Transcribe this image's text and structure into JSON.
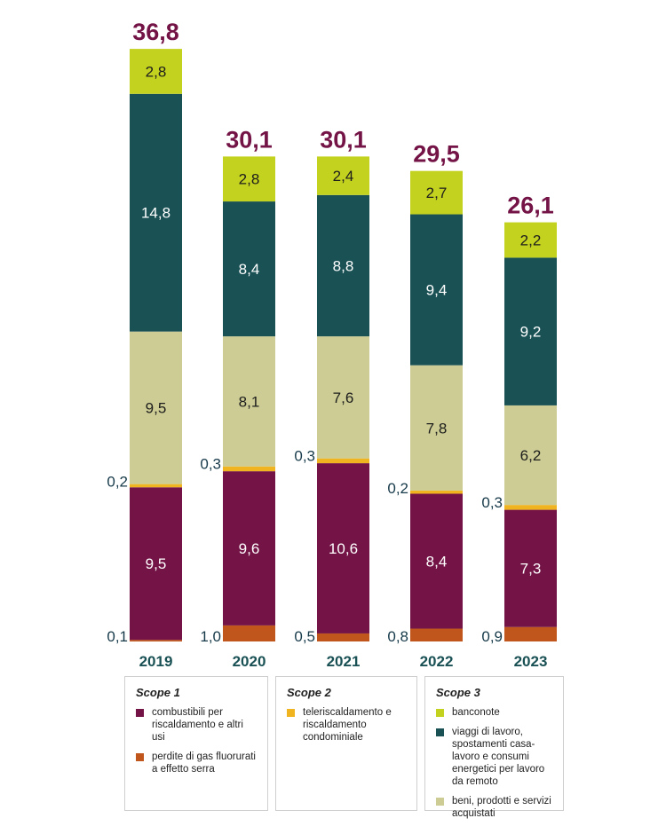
{
  "chart_data": {
    "type": "bar",
    "stacked": true,
    "categories": [
      "2019",
      "2020",
      "2021",
      "2022",
      "2023"
    ],
    "totals": [
      "36,8",
      "30,1",
      "30,1",
      "29,5",
      "26,1"
    ],
    "series": [
      {
        "name": "perdite di gas fluorurati a effetto serra",
        "color": "#c0561c",
        "values": [
          0.1,
          1.0,
          0.5,
          0.8,
          0.9
        ],
        "labels": [
          "0,1",
          "1,0",
          "0,5",
          "0,8",
          "0,9"
        ]
      },
      {
        "name": "combustibili per riscaldamento e altri usi",
        "color": "#731346",
        "values": [
          9.5,
          9.6,
          10.6,
          8.4,
          7.3
        ],
        "labels": [
          "9,5",
          "9,6",
          "10,6",
          "8,4",
          "7,3"
        ]
      },
      {
        "name": "teleriscaldamento e riscaldamento condominiale",
        "color": "#f0b420",
        "values": [
          0.2,
          0.3,
          0.3,
          0.2,
          0.3
        ],
        "labels": [
          "0,2",
          "0,3",
          "0,3",
          "0,2",
          "0,3"
        ]
      },
      {
        "name": "beni, prodotti e servizi acquistati",
        "color": "#cccc94",
        "values": [
          9.5,
          8.1,
          7.6,
          7.8,
          6.2
        ],
        "labels": [
          "9,5",
          "8,1",
          "7,6",
          "7,8",
          "6,2"
        ]
      },
      {
        "name": "viaggi di lavoro, spostamenti casa-lavoro e consumi energetici per lavoro da remoto",
        "color": "#1a5155",
        "values": [
          14.8,
          8.4,
          8.8,
          9.4,
          9.2
        ],
        "labels": [
          "14,8",
          "8,4",
          "8,8",
          "9,4",
          "9,2"
        ]
      },
      {
        "name": "banconote",
        "color": "#c3d21e",
        "values": [
          2.8,
          2.8,
          2.4,
          2.7,
          2.2
        ],
        "labels": [
          "2,8",
          "2,8",
          "2,4",
          "2,7",
          "2,2"
        ]
      }
    ],
    "outside_label_series": [
      0,
      2
    ],
    "colors": {
      "total": "#731346",
      "category": "#1a5155",
      "outside_label": "#173a4a"
    },
    "legend_placement": "bottom",
    "grid": false
  },
  "legend": {
    "groups": [
      {
        "title": "Scope 1",
        "items": [
          {
            "label": "combustibili per riscaldamento e altri usi",
            "color": "#731346"
          },
          {
            "label": "perdite di gas fluorurati a effetto serra",
            "color": "#c0561c"
          }
        ]
      },
      {
        "title": "Scope 2",
        "items": [
          {
            "label": "teleriscaldamento e riscaldamento condominiale",
            "color": "#f0b420"
          }
        ]
      },
      {
        "title": "Scope 3",
        "items": [
          {
            "label": "banconote",
            "color": "#c3d21e"
          },
          {
            "label": "viaggi di lavoro, spostamenti casa-lavoro e consumi energetici per lavoro da remoto",
            "color": "#1a5155"
          },
          {
            "label": "beni, prodotti e servizi acquistati",
            "color": "#cccc94"
          }
        ]
      }
    ]
  }
}
